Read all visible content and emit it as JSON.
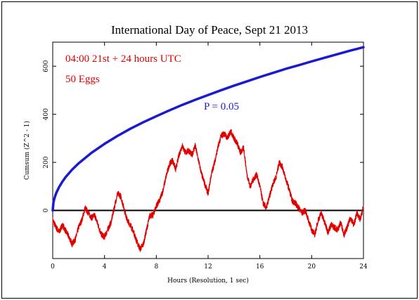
{
  "chart_data": {
    "type": "line",
    "title": "International Day of Peace, Sept 21 2013",
    "xlabel": "Hours (Resolution, 1 sec)",
    "ylabel": "Cumsum (Z^2 - 1)",
    "xlim": [
      0,
      24
    ],
    "ylim": [
      -200,
      700
    ],
    "x_ticks": [
      0,
      4,
      8,
      12,
      16,
      20,
      24
    ],
    "y_ticks": [
      0,
      200,
      400,
      600
    ],
    "annotations": [
      "04:00 21st + 24 hours UTC",
      "50 Eggs",
      "P = 0.05"
    ],
    "grid": false,
    "colors": {
      "cumsum": "#e00000",
      "probability_envelope": "#1a1ad0",
      "zero_line": "#000000"
    },
    "series": [
      {
        "name": "",
        "style": "thick-smooth",
        "x": [
          0,
          0.05,
          0.1,
          0.2,
          0.3,
          0.5,
          0.75,
          1,
          1.5,
          2,
          3,
          4,
          5,
          6,
          7,
          8,
          9,
          10,
          11,
          12,
          13,
          14,
          15,
          16,
          17,
          18,
          19,
          20,
          21,
          22,
          23,
          24
        ],
        "y": [
          0,
          31,
          44,
          62,
          76,
          98,
          120,
          139,
          170,
          196,
          240,
          277,
          310,
          340,
          367,
          392,
          416,
          439,
          460,
          480,
          500,
          519,
          537,
          555,
          572,
          589,
          604,
          620,
          635,
          650,
          665,
          679
        ]
      },
      {
        "name": "",
        "style": "noisy",
        "x": [
          0,
          0.25,
          0.5,
          0.75,
          1,
          1.25,
          1.5,
          1.75,
          2,
          2.25,
          2.5,
          2.75,
          3,
          3.25,
          3.5,
          3.75,
          4,
          4.25,
          4.5,
          4.75,
          5,
          5.25,
          5.5,
          5.75,
          6,
          6.25,
          6.5,
          6.75,
          7,
          7.25,
          7.5,
          7.75,
          8,
          8.25,
          8.5,
          8.75,
          9,
          9.25,
          9.5,
          9.75,
          10,
          10.25,
          10.5,
          10.75,
          11,
          11.25,
          11.5,
          11.75,
          12,
          12.25,
          12.5,
          12.75,
          13,
          13.25,
          13.5,
          13.75,
          14,
          14.25,
          14.5,
          14.75,
          15,
          15.25,
          15.5,
          15.75,
          16,
          16.25,
          16.5,
          16.75,
          17,
          17.25,
          17.5,
          17.75,
          18,
          18.25,
          18.5,
          18.75,
          19,
          19.25,
          19.5,
          19.75,
          20,
          20.25,
          20.5,
          20.75,
          21,
          21.25,
          21.5,
          21.75,
          22,
          22.25,
          22.5,
          22.75,
          23,
          23.25,
          23.5,
          23.75,
          24
        ],
        "y": [
          -40,
          -70,
          -90,
          -60,
          -85,
          -110,
          -140,
          -120,
          -70,
          -40,
          10,
          -10,
          -30,
          -20,
          -60,
          -100,
          -110,
          -80,
          -50,
          10,
          70,
          60,
          10,
          -40,
          -60,
          -90,
          -130,
          -160,
          -140,
          -80,
          -20,
          -20,
          20,
          40,
          80,
          140,
          190,
          210,
          170,
          230,
          270,
          240,
          250,
          230,
          270,
          210,
          150,
          110,
          70,
          150,
          200,
          260,
          310,
          320,
          300,
          330,
          300,
          280,
          240,
          260,
          150,
          100,
          130,
          150,
          100,
          30,
          10,
          60,
          110,
          140,
          200,
          180,
          130,
          90,
          40,
          30,
          10,
          -10,
          0,
          -40,
          -80,
          -100,
          -40,
          -10,
          -50,
          -90,
          -60,
          -70,
          -80,
          -50,
          -100,
          -70,
          -30,
          -60,
          -10,
          -40,
          20
        ]
      }
    ]
  }
}
